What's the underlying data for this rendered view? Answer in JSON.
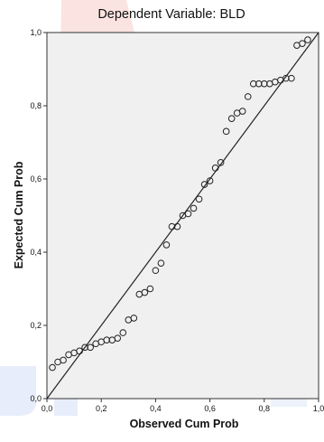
{
  "chart_data": {
    "type": "scatter",
    "title": "Dependent Variable: BLD",
    "xlabel": "Observed Cum Prob",
    "ylabel": "Expected Cum Prob",
    "xlim": [
      0,
      1
    ],
    "ylim": [
      0,
      1
    ],
    "x_ticks": [
      "0,0",
      "0,2",
      "0,4",
      "0,6",
      "0,8",
      "1,0"
    ],
    "y_ticks": [
      "0,0",
      "0,2",
      "0,4",
      "0,6",
      "0,8",
      "1,0"
    ],
    "grid": false,
    "reference_line": [
      [
        0,
        0
      ],
      [
        1,
        1
      ]
    ],
    "background_color": "#f0f0f0",
    "point_color": "#222222",
    "points": [
      [
        0.02,
        0.085
      ],
      [
        0.04,
        0.1
      ],
      [
        0.06,
        0.105
      ],
      [
        0.08,
        0.12
      ],
      [
        0.1,
        0.125
      ],
      [
        0.12,
        0.13
      ],
      [
        0.14,
        0.14
      ],
      [
        0.16,
        0.14
      ],
      [
        0.18,
        0.15
      ],
      [
        0.2,
        0.155
      ],
      [
        0.22,
        0.16
      ],
      [
        0.24,
        0.16
      ],
      [
        0.26,
        0.165
      ],
      [
        0.28,
        0.18
      ],
      [
        0.3,
        0.215
      ],
      [
        0.32,
        0.22
      ],
      [
        0.34,
        0.285
      ],
      [
        0.36,
        0.29
      ],
      [
        0.38,
        0.3
      ],
      [
        0.4,
        0.35
      ],
      [
        0.42,
        0.37
      ],
      [
        0.44,
        0.42
      ],
      [
        0.46,
        0.47
      ],
      [
        0.48,
        0.47
      ],
      [
        0.5,
        0.5
      ],
      [
        0.52,
        0.505
      ],
      [
        0.54,
        0.52
      ],
      [
        0.56,
        0.545
      ],
      [
        0.58,
        0.585
      ],
      [
        0.6,
        0.595
      ],
      [
        0.62,
        0.63
      ],
      [
        0.64,
        0.645
      ],
      [
        0.66,
        0.73
      ],
      [
        0.68,
        0.765
      ],
      [
        0.7,
        0.78
      ],
      [
        0.72,
        0.785
      ],
      [
        0.74,
        0.825
      ],
      [
        0.76,
        0.86
      ],
      [
        0.78,
        0.86
      ],
      [
        0.8,
        0.86
      ],
      [
        0.82,
        0.86
      ],
      [
        0.84,
        0.865
      ],
      [
        0.86,
        0.87
      ],
      [
        0.88,
        0.875
      ],
      [
        0.9,
        0.875
      ],
      [
        0.92,
        0.965
      ],
      [
        0.94,
        0.97
      ],
      [
        0.96,
        0.98
      ]
    ]
  }
}
